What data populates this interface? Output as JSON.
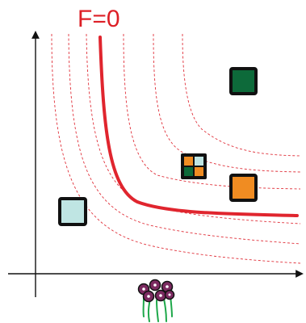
{
  "diagram": {
    "curve_label": "F=0",
    "colors": {
      "axis": "#111111",
      "main_curve": "#e0252e",
      "level_curves": "#e0303a",
      "square_outline": "#111111",
      "dark_green": "#0d6a3a",
      "orange": "#f08c22",
      "light_teal": "#bfe5e3",
      "flower_petal": "#7b2a60",
      "flower_stem": "#1ea84a"
    },
    "level_curve_count": 6,
    "items": [
      {
        "name": "dark-green-square",
        "fill": "dark_green"
      },
      {
        "name": "mixed-checker-square",
        "fill": "mixed"
      },
      {
        "name": "orange-square",
        "fill": "orange"
      },
      {
        "name": "light-teal-square",
        "fill": "light_teal"
      }
    ],
    "icons": [
      "flower-bouquet-icon"
    ]
  }
}
